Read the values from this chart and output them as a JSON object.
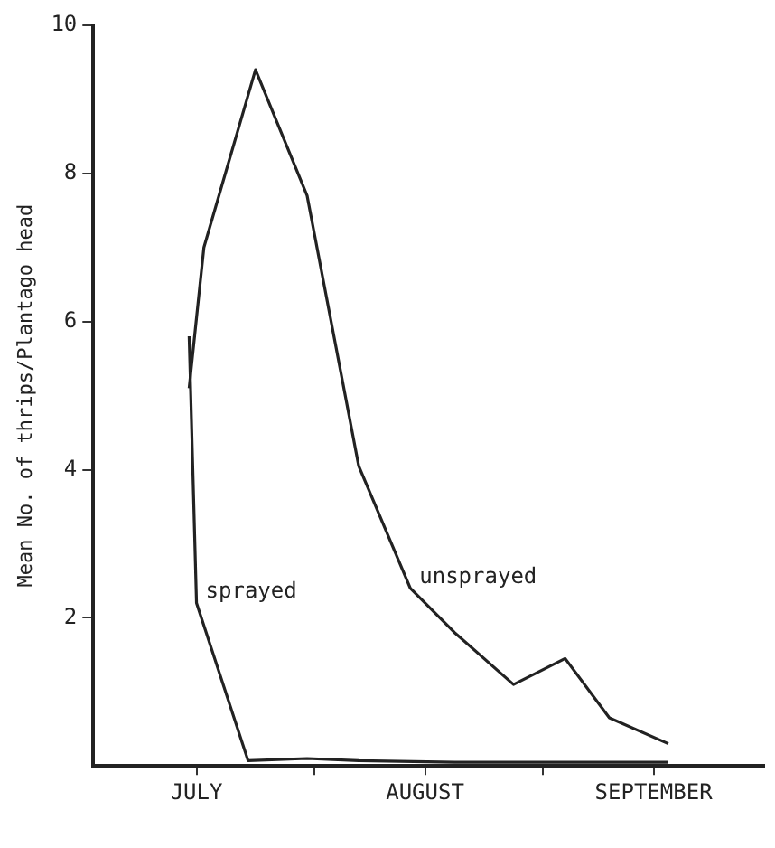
{
  "chart_data": {
    "type": "line",
    "ylabel": "Mean No. of thrips/Plantago head",
    "xlim": [
      "--07-02",
      "--10-01"
    ],
    "xticks": [
      {
        "value": "--07-16",
        "label": "JULY"
      },
      {
        "value": "--08-01",
        "label": null
      },
      {
        "value": "--08-16",
        "label": "AUGUST"
      },
      {
        "value": "--09-01",
        "label": null
      },
      {
        "value": "--09-16",
        "label": "SEPTEMBER"
      }
    ],
    "ylim": [
      0,
      10
    ],
    "yticks": [
      2,
      4,
      6,
      8,
      10
    ],
    "grid": false,
    "marker": "none",
    "line_style": "solid",
    "series": [
      {
        "name": "unsprayed",
        "color": "#222222",
        "x": [
          "--07-15",
          "--07-17",
          "--07-24",
          "--07-31",
          "--08-07",
          "--08-14",
          "--08-20",
          "--08-28",
          "--09-04",
          "--09-10",
          "--09-18"
        ],
        "values": [
          5.1,
          7.0,
          9.4,
          7.7,
          4.05,
          2.4,
          1.8,
          1.1,
          1.45,
          0.65,
          0.3
        ]
      },
      {
        "name": "sprayed",
        "color": "#222222",
        "x": [
          "--07-15",
          "--07-16",
          "--07-23",
          "--07-31",
          "--08-07",
          "--08-20",
          "--09-18"
        ],
        "values": [
          5.8,
          2.2,
          0.07,
          0.1,
          0.07,
          0.05,
          0.05
        ]
      }
    ]
  }
}
